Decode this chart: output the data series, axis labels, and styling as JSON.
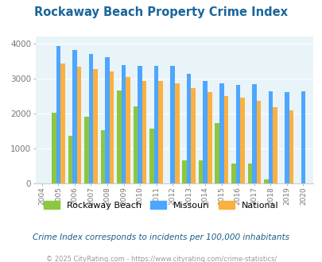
{
  "title": "Rockaway Beach Property Crime Index",
  "years": [
    2004,
    2005,
    2006,
    2007,
    2008,
    2009,
    2010,
    2011,
    2012,
    2013,
    2014,
    2015,
    2016,
    2017,
    2018,
    2019,
    2020
  ],
  "rockaway_beach": [
    0,
    2020,
    1370,
    1900,
    1530,
    2670,
    2210,
    1560,
    0,
    660,
    660,
    1730,
    560,
    570,
    110,
    0,
    0
  ],
  "missouri": [
    0,
    3940,
    3820,
    3700,
    3620,
    3390,
    3370,
    3360,
    3360,
    3140,
    2940,
    2860,
    2810,
    2840,
    2640,
    2620,
    2630
  ],
  "national": [
    0,
    3430,
    3350,
    3270,
    3210,
    3040,
    2940,
    2930,
    2870,
    2730,
    2620,
    2500,
    2460,
    2370,
    2190,
    2100,
    0
  ],
  "colors": {
    "rockaway_beach": "#8dc63f",
    "missouri": "#4da6ff",
    "national": "#fbb040"
  },
  "bg_color": "#e8f4f8",
  "ylim": [
    0,
    4200
  ],
  "yticks": [
    0,
    1000,
    2000,
    3000,
    4000
  ],
  "footer_note": "Crime Index corresponds to incidents per 100,000 inhabitants",
  "copyright": "© 2025 CityRating.com - https://www.cityrating.com/crime-statistics/",
  "legend_labels": [
    "Rockaway Beach",
    "Missouri",
    "National"
  ]
}
